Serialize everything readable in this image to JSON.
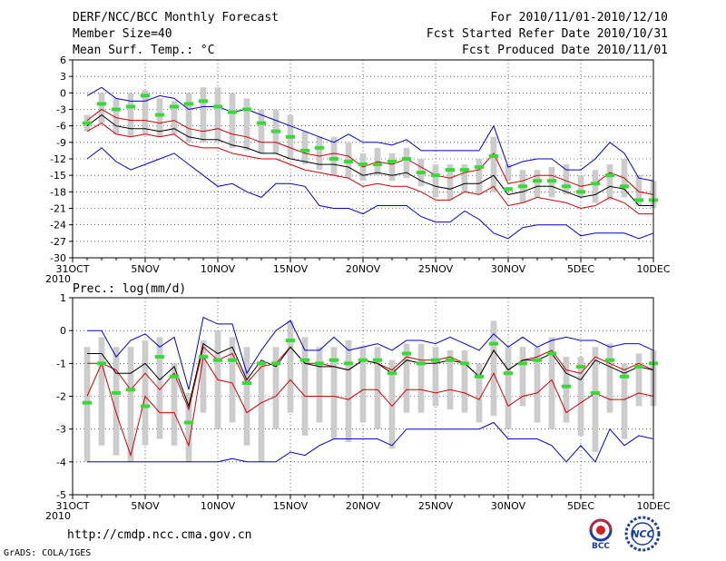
{
  "header": {
    "title": "DERF/NCC/BCC Monthly Forecast",
    "member_size": "Member Size=40",
    "variable_top": "Mean Surf. Temp.: °C",
    "period": "For 2010/11/01-2010/12/10",
    "start_date": "Fcst Started Refer Date 2010/10/31",
    "produced_date": "Fcst Produced Date 2010/11/01"
  },
  "footer": {
    "url": "http://cmdp.ncc.cma.gov.cn",
    "credit": "GrADS: COLA/IGES",
    "logo_left": "BCC",
    "logo_right": "NCC"
  },
  "colors": {
    "box": "#cccccc",
    "median": "#000000",
    "spread": "#cc0000",
    "extreme": "#0000cc",
    "mean_marker": "#33dd33",
    "grid": "#000000"
  },
  "chart_data": [
    {
      "type": "box-ensemble",
      "title": "Mean Surf. Temp.: °C",
      "ylabel": "°C",
      "ylim": [
        -30,
        6
      ],
      "yticks": [
        6,
        3,
        0,
        -3,
        -6,
        -9,
        -12,
        -15,
        -18,
        -21,
        -24,
        -27,
        -30
      ],
      "xtick_labels": [
        "31OCT",
        "5NOV",
        "10NOV",
        "15NOV",
        "20NOV",
        "25NOV",
        "30NOV",
        "5DEC",
        "10DEC"
      ],
      "xtick_days": [
        0,
        5,
        10,
        15,
        20,
        25,
        30,
        35,
        40
      ],
      "year_label": "2010",
      "days": [
        1,
        2,
        3,
        4,
        5,
        6,
        7,
        8,
        9,
        10,
        11,
        12,
        13,
        14,
        15,
        16,
        17,
        18,
        19,
        20,
        21,
        22,
        23,
        24,
        25,
        26,
        27,
        28,
        29,
        30,
        31,
        32,
        33,
        34,
        35,
        36,
        37,
        38,
        39,
        40
      ],
      "box_low": [
        -7,
        -5.5,
        -7.5,
        -8,
        -7.5,
        -8,
        -7.5,
        -9,
        -9,
        -9,
        -10,
        -10.5,
        -11,
        -11,
        -12,
        -13,
        -14,
        -15,
        -15.5,
        -16,
        -15,
        -16,
        -15.5,
        -17,
        -19,
        -19.5,
        -18,
        -18.5,
        -18,
        -16,
        -20,
        -19,
        -19,
        -18.5,
        -19,
        -20,
        -19.5,
        -19,
        -20.5,
        -21
      ],
      "box_high": [
        -4,
        0,
        -1,
        0,
        0.5,
        -1,
        -1.5,
        0,
        1,
        1,
        0,
        -1,
        -3,
        -3,
        -4,
        -7,
        -8,
        -8,
        -9,
        -11,
        -10,
        -11,
        -10,
        -12,
        -13,
        -13,
        -13,
        -12,
        -8,
        -13,
        -14,
        -14,
        -13.5,
        -13,
        -15,
        -14,
        -13,
        -12,
        -15,
        -16
      ],
      "series": [
        {
          "name": "max",
          "color": "extreme",
          "values": [
            -0.5,
            1,
            -1,
            -1.5,
            -1.5,
            -0.5,
            -1,
            -3,
            -2.5,
            -2.5,
            -3.5,
            -3,
            -4,
            -5,
            -6,
            -7,
            -8,
            -9,
            -7.5,
            -9,
            -9,
            -9.5,
            -8.5,
            -10.5,
            -10.5,
            -10.5,
            -10.5,
            -10.5,
            -6,
            -13.5,
            -12.5,
            -12,
            -12,
            -14,
            -14,
            -12,
            -9,
            -11,
            -15.5,
            -16
          ]
        },
        {
          "name": "upper",
          "color": "spread",
          "values": [
            -5,
            -3,
            -4.5,
            -5,
            -5,
            -5.5,
            -5,
            -6.5,
            -7,
            -6.5,
            -7.5,
            -8,
            -9,
            -9,
            -10,
            -11,
            -11.5,
            -11,
            -11.5,
            -13.5,
            -12.5,
            -13,
            -12,
            -13.5,
            -15,
            -15.5,
            -14.5,
            -14,
            -11,
            -16.5,
            -16,
            -15,
            -15,
            -16,
            -17,
            -16.5,
            -14.5,
            -15.5,
            -18,
            -18.5
          ]
        },
        {
          "name": "median",
          "color": "median",
          "values": [
            -6,
            -4,
            -6,
            -6.5,
            -6.5,
            -7,
            -6.5,
            -8,
            -8.5,
            -8.5,
            -9.5,
            -10,
            -11,
            -11,
            -12,
            -12.5,
            -13,
            -13,
            -13.5,
            -15,
            -14.5,
            -15,
            -14.5,
            -16,
            -17,
            -17.5,
            -16.5,
            -16.5,
            -15,
            -18.5,
            -18,
            -17,
            -17,
            -18,
            -19,
            -18.5,
            -17,
            -17.5,
            -20.5,
            -20.5
          ]
        },
        {
          "name": "lower",
          "color": "spread",
          "values": [
            -7,
            -5.5,
            -7.5,
            -8,
            -7.5,
            -8,
            -7.5,
            -9.5,
            -10,
            -10,
            -11,
            -11.5,
            -12,
            -12,
            -13,
            -14,
            -14.5,
            -15,
            -15.5,
            -17,
            -16.5,
            -17,
            -17,
            -18,
            -19.5,
            -19.5,
            -18,
            -18.5,
            -17,
            -20.5,
            -20,
            -19,
            -19.5,
            -20,
            -21,
            -20.5,
            -19,
            -20,
            -22,
            -22
          ]
        },
        {
          "name": "min",
          "color": "extreme",
          "values": [
            -12,
            -10,
            -12.5,
            -14,
            -13,
            -12,
            -11,
            -13,
            -15,
            -17,
            -16.5,
            -18,
            -19,
            -16.5,
            -16.5,
            -17,
            -20.5,
            -21,
            -21,
            -22,
            -20.5,
            -20.5,
            -20.5,
            -22.5,
            -23.5,
            -23.5,
            -21.5,
            -23,
            -25.5,
            -26.5,
            -24.5,
            -24,
            -24,
            -24,
            -26,
            -25.5,
            -25.5,
            -25.5,
            -26.5,
            -25.5
          ]
        }
      ],
      "mean_markers": [
        -5.5,
        -2,
        -3,
        -2.5,
        -0.5,
        -4,
        -2.5,
        -2,
        -1.5,
        -2.5,
        -3.5,
        -3,
        -5.5,
        -7,
        -8,
        -10.5,
        -10,
        -12,
        -12.5,
        -13,
        -13,
        -12.5,
        -12,
        -14.5,
        -15,
        -14,
        -14,
        -13.5,
        -11.5,
        -17.5,
        -17,
        -16,
        -16,
        -17,
        -18,
        -16.5,
        -15,
        -17,
        -19.5,
        -19.5
      ]
    },
    {
      "type": "box-ensemble",
      "title": "Prec.: log(mm/d)",
      "ylabel": "log(mm/d)",
      "ylim": [
        -5,
        1
      ],
      "yticks": [
        1,
        0,
        -1,
        -2,
        -3,
        -4,
        -5
      ],
      "xtick_labels": [
        "31OCT",
        "5NOV",
        "10NOV",
        "15NOV",
        "20NOV",
        "25NOV",
        "30NOV",
        "5DEC",
        "10DEC"
      ],
      "xtick_days": [
        0,
        5,
        10,
        15,
        20,
        25,
        30,
        35,
        40
      ],
      "year_label": "2010",
      "days": [
        1,
        2,
        3,
        4,
        5,
        6,
        7,
        8,
        9,
        10,
        11,
        12,
        13,
        14,
        15,
        16,
        17,
        18,
        19,
        20,
        21,
        22,
        23,
        24,
        25,
        26,
        27,
        28,
        29,
        30,
        31,
        32,
        33,
        34,
        35,
        36,
        37,
        38,
        39,
        40
      ],
      "box_low": [
        -4,
        -3.5,
        -3.8,
        -4,
        -3.5,
        -3.3,
        -3.5,
        -4,
        -2.5,
        -3,
        -2.8,
        -3.5,
        -4,
        -3,
        -2.5,
        -3.2,
        -2.8,
        -3.3,
        -3.4,
        -2.8,
        -3,
        -3.6,
        -2.5,
        -2.5,
        -2.3,
        -2.4,
        -2.5,
        -2.8,
        -2.6,
        -3,
        -2.3,
        -2.8,
        -3,
        -2.8,
        -3.2,
        -3.7,
        -2.5,
        -3.3,
        -2.3,
        -2.3
      ],
      "box_high": [
        -0.5,
        -0.2,
        -0.5,
        -0.5,
        -0.3,
        -0.2,
        -1,
        -1.9,
        -0.3,
        0,
        -0.2,
        -0.5,
        -1,
        -0.5,
        0.3,
        -0.2,
        -0.5,
        -0.5,
        -0.3,
        -0.5,
        -0.5,
        -0.9,
        -0.4,
        -0.4,
        -0.5,
        -0.6,
        -0.6,
        -1,
        0.3,
        -0.5,
        -0.5,
        -0.5,
        -0.2,
        -0.8,
        -0.8,
        -0.5,
        -0.4,
        -1,
        -0.7,
        -0.6
      ],
      "series": [
        {
          "name": "max",
          "color": "extreme",
          "values": [
            0,
            0,
            -0.8,
            -0.3,
            -0.1,
            -0.5,
            -0.2,
            -1.8,
            0.4,
            0.2,
            0.2,
            -1.3,
            -0.6,
            0,
            0.3,
            -0.6,
            -0.6,
            -0.2,
            -0.6,
            -0.5,
            -0.4,
            -0.6,
            -0.3,
            -0.3,
            -0.4,
            -0.2,
            -0.4,
            -0.6,
            -0.1,
            -0.5,
            -0.2,
            -0.5,
            -0.3,
            -0.2,
            -0.3,
            -0.3,
            -0.5,
            -0.4,
            -0.4,
            -0.6
          ]
        },
        {
          "name": "upper",
          "color": "spread",
          "values": [
            -1,
            -1,
            -1.2,
            -1.8,
            -1.3,
            -1.8,
            -1.3,
            -2.4,
            -0.5,
            -0.9,
            -0.7,
            -1.6,
            -1.1,
            -1,
            -0.5,
            -1,
            -1,
            -1.1,
            -1.2,
            -0.9,
            -1,
            -1.2,
            -0.8,
            -0.9,
            -0.9,
            -0.8,
            -1,
            -1.4,
            -0.6,
            -1.2,
            -0.9,
            -0.8,
            -0.6,
            -1.2,
            -1.3,
            -0.8,
            -1,
            -1.2,
            -1,
            -1.2
          ]
        },
        {
          "name": "median",
          "color": "median",
          "values": [
            -0.7,
            -0.7,
            -1.3,
            -1.3,
            -1,
            -1.5,
            -1.1,
            -2.3,
            -0.4,
            -0.7,
            -0.5,
            -1.5,
            -0.9,
            -1.1,
            -0.5,
            -1,
            -1.1,
            -1.1,
            -1.2,
            -0.9,
            -1,
            -1.3,
            -0.9,
            -1,
            -1,
            -0.9,
            -1,
            -1.4,
            -0.6,
            -1.2,
            -0.9,
            -0.9,
            -0.7,
            -1.3,
            -1.5,
            -0.9,
            -1.1,
            -1.3,
            -1.1,
            -1.2
          ]
        },
        {
          "name": "lower",
          "color": "spread",
          "values": [
            -2,
            -1,
            -2.5,
            -3.8,
            -2,
            -2.5,
            -2.5,
            -3.5,
            -0.8,
            -1.5,
            -1.6,
            -2.5,
            -2.2,
            -2,
            -1.5,
            -2,
            -2,
            -2,
            -2.1,
            -1.8,
            -1.8,
            -2.3,
            -1.8,
            -1.8,
            -1.9,
            -1.8,
            -1.9,
            -2.1,
            -1.3,
            -2.3,
            -2,
            -1.9,
            -1.5,
            -2.5,
            -2.2,
            -1.9,
            -2.1,
            -2.1,
            -1.9,
            -2
          ]
        },
        {
          "name": "min",
          "color": "extreme",
          "values": [
            -4,
            -4,
            -4,
            -4,
            -4,
            -4,
            -4,
            -4,
            -4,
            -4,
            -3.9,
            -4,
            -4,
            -4,
            -3.7,
            -3.8,
            -3.5,
            -3.3,
            -3.3,
            -3.3,
            -3.3,
            -3.5,
            -3,
            -3,
            -3,
            -3,
            -3,
            -3,
            -2.8,
            -3.3,
            -3.3,
            -3.3,
            -3.5,
            -4,
            -3.5,
            -4,
            -3,
            -3.5,
            -3.2,
            -3.3
          ]
        }
      ],
      "mean_markers": [
        -2.2,
        -1,
        -1.9,
        -1.8,
        -2.3,
        -0.8,
        -1.4,
        -2.8,
        -0.8,
        -0.9,
        -0.9,
        -1.6,
        -1,
        -1,
        -0.3,
        -0.9,
        -1,
        -0.9,
        -1,
        -0.9,
        -0.9,
        -1.3,
        -0.7,
        -1,
        -0.9,
        -0.9,
        -1,
        -1.4,
        -0.4,
        -1.3,
        -1,
        -0.9,
        -0.7,
        -1.7,
        -1.1,
        -1.9,
        -0.9,
        -1.4,
        -1.1,
        -1
      ]
    }
  ]
}
